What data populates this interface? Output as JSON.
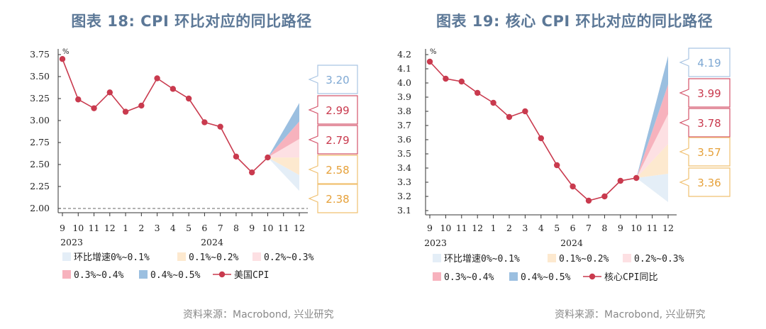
{
  "charts": [
    {
      "title": "图表 18:  CPI  环比对应的同比路径",
      "source": "资料来源：Macrobond, 兴业研究",
      "unit": "%",
      "year_labels": [
        "2023",
        "2024"
      ],
      "callouts": [
        "3.20",
        "2.99",
        "2.79",
        "2.58",
        "2.38"
      ]
    },
    {
      "title": "图表 19:  核心  CPI  环比对应的同比路径",
      "source": "资料来源：Macrobond, 兴业研究",
      "unit": "%",
      "year_labels": [
        "2023",
        "2024"
      ],
      "callouts": [
        "4.19",
        "3.99",
        "3.78",
        "3.57",
        "3.36"
      ]
    }
  ],
  "legend_labels": {
    "band_0": "环比增速0%~0.1%",
    "band_1": "0.1%~0.2%",
    "band_2": "0.2%~0.3%",
    "band_3": "0.3%~0.4%",
    "band_4": "0.4%~0.5%"
  },
  "colors": {
    "line": "#c93a4e",
    "bands": [
      "#e4eef7",
      "#fde9cf",
      "#fde0e3",
      "#f7b2bd",
      "#9bbfe0"
    ],
    "callout_borders": [
      "#a9c5e3",
      "#d4536a",
      "#d4536a",
      "#f0c070",
      "#f0c070"
    ],
    "callout_text": [
      "#7ea8d3",
      "#c93a4e",
      "#c93a4e",
      "#e6a13a",
      "#e6a13a"
    ],
    "title": "#5c7897"
  },
  "chart_data": [
    {
      "type": "line",
      "title": "图表 18:  CPI  环比对应的同比路径",
      "ylabel": "%",
      "ylim": [
        2.0,
        3.75
      ],
      "yticks": [
        2.0,
        2.25,
        2.5,
        2.75,
        3.0,
        3.25,
        3.5,
        3.75
      ],
      "ytick_labels": [
        "2.00",
        "2.25",
        "2.50",
        "2.75",
        "3.00",
        "3.25",
        "3.50",
        "3.75"
      ],
      "reference_line": 2.0,
      "categories": [
        "9",
        "10",
        "11",
        "12",
        "1",
        "2",
        "3",
        "4",
        "5",
        "6",
        "7",
        "8",
        "9",
        "10",
        "11",
        "12"
      ],
      "series": [
        {
          "name": "美国CPI",
          "values": [
            3.7,
            3.24,
            3.14,
            3.32,
            3.1,
            3.17,
            3.48,
            3.36,
            3.25,
            2.98,
            2.93,
            2.59,
            2.41,
            2.58,
            null,
            null
          ]
        }
      ],
      "projection_start_index": 13,
      "projection_end_values": [
        2.2,
        2.38,
        2.58,
        2.79,
        2.99,
        3.2
      ],
      "band_names": [
        "环比增速0%~0.1%",
        "0.1%~0.2%",
        "0.2%~0.3%",
        "0.3%~0.4%",
        "0.4%~0.5%"
      ]
    },
    {
      "type": "line",
      "title": "图表 19:  核心  CPI  环比对应的同比路径",
      "ylabel": "%",
      "ylim": [
        3.1,
        4.2
      ],
      "yticks": [
        3.1,
        3.2,
        3.3,
        3.4,
        3.5,
        3.6,
        3.7,
        3.8,
        3.9,
        4.0,
        4.1,
        4.2
      ],
      "ytick_labels": [
        "3.1",
        "3.2",
        "3.3",
        "3.4",
        "3.5",
        "3.6",
        "3.7",
        "3.8",
        "3.9",
        "4.0",
        "4.1",
        "4.2"
      ],
      "categories": [
        "9",
        "10",
        "11",
        "12",
        "1",
        "2",
        "3",
        "4",
        "5",
        "6",
        "7",
        "8",
        "9",
        "10",
        "11",
        "12"
      ],
      "series": [
        {
          "name": "核心CPI同比",
          "values": [
            4.15,
            4.03,
            4.01,
            3.93,
            3.86,
            3.76,
            3.8,
            3.61,
            3.42,
            3.27,
            3.17,
            3.2,
            3.31,
            3.33,
            null,
            null
          ]
        }
      ],
      "projection_start_index": 13,
      "projection_end_values": [
        3.16,
        3.36,
        3.57,
        3.78,
        3.99,
        4.19
      ],
      "band_names": [
        "环比增速0%~0.1%",
        "0.1%~0.2%",
        "0.2%~0.3%",
        "0.3%~0.4%",
        "0.4%~0.5%"
      ]
    }
  ]
}
